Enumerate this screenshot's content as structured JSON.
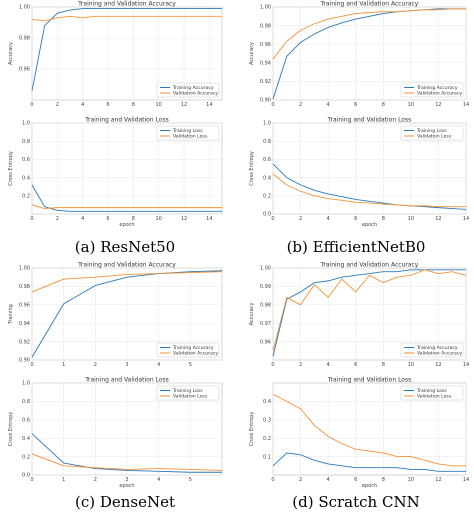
{
  "colors": {
    "training": "#2a79b7",
    "validation": "#f39234"
  },
  "captions": {
    "a": "(a) ResNet50",
    "b": "(b) EfficientNetB0",
    "c": "(c) DenseNet",
    "d": "(d) Scratch CNN"
  },
  "chart_data": [
    {
      "id": "a-acc",
      "type": "line",
      "title": "Training and Validation Accuracy",
      "xlabel": "",
      "ylabel": "Accuracy",
      "xlim": [
        0,
        15
      ],
      "ylim": [
        0.94,
        1.0
      ],
      "xticks": [
        0,
        2,
        4,
        6,
        8,
        10,
        12,
        14
      ],
      "yticks": [
        0.96,
        0.98,
        1.0
      ],
      "ytick_labels": [
        "0.96",
        "0.98",
        "1.00"
      ],
      "legend": "bottom-right",
      "series": [
        {
          "name": "Training Accuracy",
          "color": "training",
          "x": [
            0,
            1,
            2,
            3,
            4,
            5,
            6,
            7,
            8,
            9,
            10,
            11,
            12,
            13,
            14,
            15
          ],
          "y": [
            0.946,
            0.988,
            0.996,
            0.998,
            0.999,
            0.999,
            0.999,
            0.999,
            0.999,
            0.999,
            0.999,
            0.999,
            0.999,
            0.999,
            0.999,
            0.999
          ]
        },
        {
          "name": "Validation Accuracy",
          "color": "validation",
          "x": [
            0,
            1,
            2,
            3,
            4,
            5,
            6,
            7,
            8,
            9,
            10,
            11,
            12,
            13,
            14,
            15
          ],
          "y": [
            0.992,
            0.991,
            0.993,
            0.994,
            0.993,
            0.994,
            0.994,
            0.994,
            0.994,
            0.994,
            0.994,
            0.994,
            0.994,
            0.994,
            0.994,
            0.994
          ]
        }
      ]
    },
    {
      "id": "a-loss",
      "type": "line",
      "title": "Training and Validation Loss",
      "xlabel": "epoch",
      "ylabel": "Cross Entropy",
      "xlim": [
        0,
        15
      ],
      "ylim": [
        0,
        1.0
      ],
      "xticks": [
        0,
        2,
        4,
        6,
        8,
        10,
        12,
        14
      ],
      "yticks": [
        0,
        0.2,
        0.4,
        0.6,
        0.8,
        1.0
      ],
      "ytick_labels": [
        "",
        "0.2",
        "0.4",
        "0.6",
        "0.8",
        "1.0"
      ],
      "legend": "top-right",
      "series": [
        {
          "name": "Training Loss",
          "color": "training",
          "x": [
            0,
            1,
            2,
            3,
            4,
            5,
            6,
            7,
            8,
            9,
            10,
            11,
            12,
            13,
            14,
            15
          ],
          "y": [
            0.32,
            0.08,
            0.04,
            0.03,
            0.03,
            0.03,
            0.03,
            0.03,
            0.03,
            0.03,
            0.03,
            0.03,
            0.03,
            0.03,
            0.03,
            0.03
          ]
        },
        {
          "name": "Validation Loss",
          "color": "validation",
          "x": [
            0,
            1,
            2,
            3,
            4,
            5,
            6,
            7,
            8,
            9,
            10,
            11,
            12,
            13,
            14,
            15
          ],
          "y": [
            0.1,
            0.06,
            0.07,
            0.07,
            0.07,
            0.07,
            0.07,
            0.07,
            0.07,
            0.07,
            0.07,
            0.07,
            0.07,
            0.07,
            0.07,
            0.07
          ]
        }
      ]
    },
    {
      "id": "b-acc",
      "type": "line",
      "title": "Training and Validation Accuracy",
      "xlabel": "",
      "ylabel": "Accuracy",
      "xlim": [
        0,
        14
      ],
      "ylim": [
        0.9,
        1.0
      ],
      "xticks": [
        0,
        2,
        4,
        6,
        8,
        10,
        12,
        14
      ],
      "yticks": [
        0.9,
        0.92,
        0.94,
        0.96,
        0.98,
        1.0
      ],
      "ytick_labels": [
        "0.90",
        "0.92",
        "0.94",
        "0.96",
        "0.98",
        "1.00"
      ],
      "legend": "bottom-right",
      "series": [
        {
          "name": "Training Accuracy",
          "color": "training",
          "x": [
            0,
            1,
            2,
            3,
            4,
            5,
            6,
            7,
            8,
            9,
            10,
            11,
            12,
            13,
            14
          ],
          "y": [
            0.901,
            0.947,
            0.962,
            0.971,
            0.978,
            0.983,
            0.987,
            0.99,
            0.993,
            0.995,
            0.996,
            0.997,
            0.998,
            0.998,
            0.998
          ]
        },
        {
          "name": "Validation Accuracy",
          "color": "validation",
          "x": [
            0,
            1,
            2,
            3,
            4,
            5,
            6,
            7,
            8,
            9,
            10,
            11,
            12,
            13,
            14
          ],
          "y": [
            0.944,
            0.963,
            0.975,
            0.982,
            0.987,
            0.99,
            0.993,
            0.994,
            0.995,
            0.995,
            0.996,
            0.997,
            0.997,
            0.998,
            0.998
          ]
        }
      ]
    },
    {
      "id": "b-loss",
      "type": "line",
      "title": "Training and Validation Loss",
      "xlabel": "epoch",
      "ylabel": "Cross Entropy",
      "xlim": [
        0,
        14
      ],
      "ylim": [
        0,
        1.0
      ],
      "xticks": [
        0,
        2,
        4,
        6,
        8,
        10,
        12,
        14
      ],
      "yticks": [
        0,
        0.2,
        0.4,
        0.6,
        0.8,
        1.0
      ],
      "ytick_labels": [
        "0.0",
        "0.2",
        "0.4",
        "0.6",
        "0.8",
        "1.0"
      ],
      "legend": "top-right",
      "series": [
        {
          "name": "Training Loss",
          "color": "training",
          "x": [
            0,
            1,
            2,
            3,
            4,
            5,
            6,
            7,
            8,
            9,
            10,
            11,
            12,
            13,
            14
          ],
          "y": [
            0.55,
            0.4,
            0.32,
            0.26,
            0.22,
            0.19,
            0.16,
            0.14,
            0.12,
            0.1,
            0.09,
            0.08,
            0.07,
            0.06,
            0.05
          ]
        },
        {
          "name": "Validation Loss",
          "color": "validation",
          "x": [
            0,
            1,
            2,
            3,
            4,
            5,
            6,
            7,
            8,
            9,
            10,
            11,
            12,
            13,
            14
          ],
          "y": [
            0.44,
            0.32,
            0.25,
            0.2,
            0.17,
            0.15,
            0.13,
            0.12,
            0.11,
            0.1,
            0.09,
            0.09,
            0.08,
            0.08,
            0.08
          ]
        }
      ]
    },
    {
      "id": "c-acc",
      "type": "line",
      "title": "Training and Validation Accuracy",
      "xlabel": "",
      "ylabel": "Training",
      "xlim": [
        0,
        6
      ],
      "ylim": [
        0.9,
        1.0
      ],
      "xticks": [
        0,
        1,
        2,
        3,
        4,
        5
      ],
      "yticks": [
        0.9,
        0.92,
        0.94,
        0.96,
        0.98,
        1.0
      ],
      "ytick_labels": [
        "0.90",
        "0.92",
        "0.94",
        "0.96",
        "0.98",
        "1.00"
      ],
      "legend": "bottom-right",
      "series": [
        {
          "name": "Training Accuracy",
          "color": "training",
          "x": [
            0,
            1,
            2,
            3,
            4,
            5,
            6
          ],
          "y": [
            0.903,
            0.961,
            0.981,
            0.99,
            0.994,
            0.996,
            0.997
          ]
        },
        {
          "name": "Validation Accuracy",
          "color": "validation",
          "x": [
            0,
            1,
            2,
            3,
            4,
            5,
            6
          ],
          "y": [
            0.974,
            0.988,
            0.99,
            0.993,
            0.994,
            0.995,
            0.996
          ]
        }
      ]
    },
    {
      "id": "c-loss",
      "type": "line",
      "title": "Training and Validation Loss",
      "xlabel": "epoch",
      "ylabel": "Cross Entropy",
      "xlim": [
        0,
        6
      ],
      "ylim": [
        0,
        1.0
      ],
      "xticks": [
        0,
        1,
        2,
        3,
        4,
        5
      ],
      "yticks": [
        0,
        0.2,
        0.4,
        0.6,
        0.8,
        1.0
      ],
      "ytick_labels": [
        "0.0",
        "0.2",
        "0.4",
        "0.6",
        "0.8",
        "1.0"
      ],
      "legend": "top-right",
      "series": [
        {
          "name": "Training Loss",
          "color": "training",
          "x": [
            0,
            1,
            2,
            3,
            4,
            5,
            6
          ],
          "y": [
            0.45,
            0.13,
            0.07,
            0.05,
            0.04,
            0.03,
            0.03
          ]
        },
        {
          "name": "Validation Loss",
          "color": "validation",
          "x": [
            0,
            1,
            2,
            3,
            4,
            5,
            6
          ],
          "y": [
            0.23,
            0.1,
            0.08,
            0.06,
            0.07,
            0.06,
            0.05
          ]
        }
      ]
    },
    {
      "id": "d-acc",
      "type": "line",
      "title": "Training and Validation Accuracy",
      "xlabel": "",
      "ylabel": "Accuracy",
      "xlim": [
        0,
        14
      ],
      "ylim": [
        0.95,
        1.0
      ],
      "xticks": [
        0,
        2,
        4,
        6,
        8,
        10,
        12,
        14
      ],
      "yticks": [
        0.96,
        0.97,
        0.98,
        0.99,
        1.0
      ],
      "ytick_labels": [
        "0.96",
        "0.97",
        "0.98",
        "0.99",
        "1.00"
      ],
      "legend": "bottom-right",
      "series": [
        {
          "name": "Training Accuracy",
          "color": "training",
          "x": [
            0,
            1,
            2,
            3,
            4,
            5,
            6,
            7,
            8,
            9,
            10,
            11,
            12,
            13,
            14
          ],
          "y": [
            0.952,
            0.983,
            0.987,
            0.992,
            0.993,
            0.995,
            0.996,
            0.997,
            0.998,
            0.998,
            0.999,
            0.999,
            0.999,
            0.999,
            0.999
          ]
        },
        {
          "name": "Validation Accuracy",
          "color": "validation",
          "x": [
            0,
            1,
            2,
            3,
            4,
            5,
            6,
            7,
            8,
            9,
            10,
            11,
            12,
            13,
            14
          ],
          "y": [
            0.955,
            0.984,
            0.98,
            0.991,
            0.984,
            0.994,
            0.987,
            0.996,
            0.992,
            0.995,
            0.996,
            0.999,
            0.997,
            0.998,
            0.996
          ]
        }
      ]
    },
    {
      "id": "d-loss",
      "type": "line",
      "title": "Training and Validation Loss",
      "xlabel": "epoch",
      "ylabel": "Cross Entropy",
      "xlim": [
        0,
        14
      ],
      "ylim": [
        0,
        0.5
      ],
      "xticks": [
        0,
        2,
        4,
        6,
        8,
        10,
        12,
        14
      ],
      "yticks": [
        0.1,
        0.2,
        0.3,
        0.4
      ],
      "ytick_labels": [
        "0.1",
        "0.2",
        "0.3",
        "0.4"
      ],
      "legend": "top-right",
      "series": [
        {
          "name": "Training Loss",
          "color": "training",
          "x": [
            0,
            1,
            2,
            3,
            4,
            5,
            6,
            7,
            8,
            9,
            10,
            11,
            12,
            13,
            14
          ],
          "y": [
            0.05,
            0.12,
            0.11,
            0.08,
            0.06,
            0.05,
            0.04,
            0.04,
            0.04,
            0.04,
            0.03,
            0.03,
            0.02,
            0.02,
            0.02
          ]
        },
        {
          "name": "Validation Loss",
          "color": "validation",
          "x": [
            0,
            1,
            2,
            3,
            4,
            5,
            6,
            7,
            8,
            9,
            10,
            11,
            12,
            13,
            14
          ],
          "y": [
            0.44,
            0.4,
            0.36,
            0.27,
            0.21,
            0.17,
            0.14,
            0.13,
            0.12,
            0.1,
            0.1,
            0.08,
            0.06,
            0.05,
            0.05
          ]
        }
      ]
    }
  ]
}
